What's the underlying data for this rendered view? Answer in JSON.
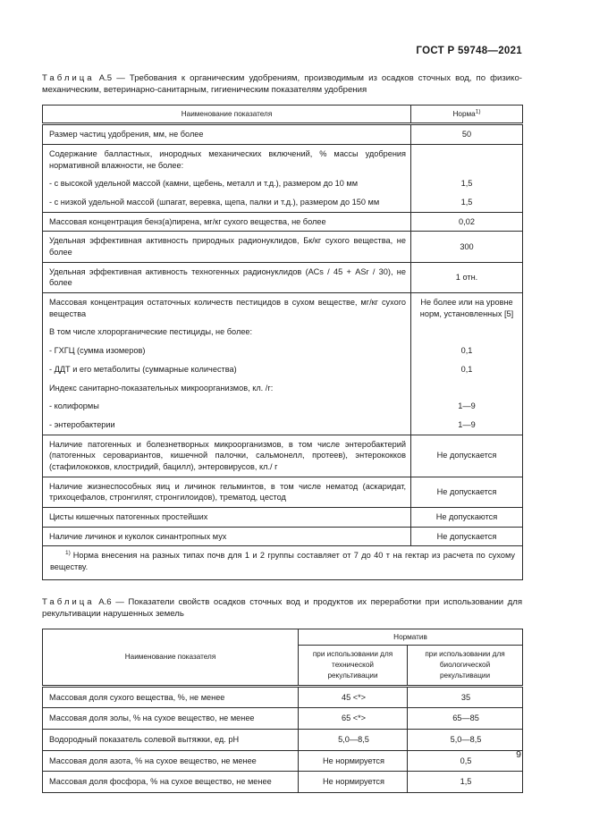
{
  "doc": {
    "code": "ГОСТ Р 59748—2021",
    "page_number": "9"
  },
  "table_a5": {
    "caption": {
      "word": "Таблица",
      "num": "А.5",
      "text": "— Требования к органическим удобрениям, производимым из осадков сточных вод, по физико-механическим, ветеринарно-санитарным, гигиеническим показателям удобрения"
    },
    "header": {
      "name": "Наименование показателя",
      "norm": "Норма",
      "norm_sup": "1)"
    },
    "rows": [
      {
        "name": "Размер частиц удобрения, мм, не более",
        "value": "50"
      },
      {
        "name": "Содержание балластных, инородных механических включений, % массы удобрения нормативной влажности, не более:",
        "value": ""
      },
      {
        "name": "- с высокой удельной массой (камни, щебень, металл и т.д.), размером до 10 мм",
        "value": "1,5"
      },
      {
        "name": "- с низкой удельной массой (шпагат, веревка, щепа, палки и т.д.), размером до 150 мм",
        "value": "1,5"
      },
      {
        "name": "Массовая концентрация бенз(а)пирена, мг/кг сухого вещества, не более",
        "value": "0,02"
      },
      {
        "name": "Удельная эффективная активность природных радионуклидов, Бк/кг сухого вещества, не более",
        "value": "300"
      },
      {
        "name": "Удельная эффективная активность техногенных радионуклидов (АСs / 45 + АSr / 30), не более",
        "value": "1 отн."
      },
      {
        "name": "Массовая концентрация остаточных количеств пестицидов в сухом веществе, мг/кг сухого вещества",
        "value": "Не более или на уровне норм, установленных [5]"
      },
      {
        "name": "В том числе хлорорганические пестициды, не более:",
        "value": ""
      },
      {
        "name": "- ГХГЦ (сумма изомеров)",
        "value": "0,1"
      },
      {
        "name": "- ДДТ и его метаболиты (суммарные количества)",
        "value": "0,1"
      },
      {
        "name": "Индекс санитарно-показательных микроорганизмов, кл. /г:",
        "value": ""
      },
      {
        "name": "- колиформы",
        "value": "1—9"
      },
      {
        "name": "- энтеробактерии",
        "value": "1—9"
      },
      {
        "name": "Наличие патогенных и болезнетворных микроорганизмов, в том числе энтеробактерий (патогенных серовариантов, кишечной палочки, сальмонелл, протеев), энтерококков (стафилококков, клостридий, бацилл), энтеровирусов, кл./ г",
        "value": "Не допускается"
      },
      {
        "name": "Наличие жизнеспособных яиц и личинок гельминтов, в том числе нематод (аскаридат, трихоцефалов, стронгилят, стронгилоидов), трематод, цестод",
        "value": "Не допускается"
      },
      {
        "name": "Цисты кишечных патогенных простейших",
        "value": "Не допускаются"
      },
      {
        "name": "Наличие личинок и куколок синантропных мух",
        "value": "Не допускается"
      }
    ],
    "footnote": {
      "sup": "1)",
      "text": "Норма внесения на разных типах почв для 1 и 2 группы составляет от 7 до 40 т на гектар из расчета по сухому веществу."
    }
  },
  "table_a6": {
    "caption": {
      "word": "Таблица",
      "num": "А.6",
      "text": "— Показатели свойств осадков сточных вод и продуктов их переработки при использовании для рекультивации нарушенных земель"
    },
    "header": {
      "name": "Наименование показателя",
      "group": "Норматив",
      "col1": "при использовании для технической рекультивации",
      "col2": "при использовании для биологической рекультивации"
    },
    "rows": [
      {
        "name": "Массовая доля сухого вещества, %, не менее",
        "v1": "45 <*>",
        "v2": "35"
      },
      {
        "name": "Массовая доля золы, % на сухое вещество, не менее",
        "v1": "65 <*>",
        "v2": "65—85"
      },
      {
        "name": "Водородный показатель солевой вытяжки, ед. pH",
        "v1": "5,0—8,5",
        "v2": "5,0—8,5"
      },
      {
        "name": "Массовая доля азота, % на сухое вещество, не менее",
        "v1": "Не нормируется",
        "v2": "0,5"
      },
      {
        "name": "Массовая доля фосфора, % на сухое вещество, не менее",
        "v1": "Не нормируется",
        "v2": "1,5"
      }
    ]
  }
}
